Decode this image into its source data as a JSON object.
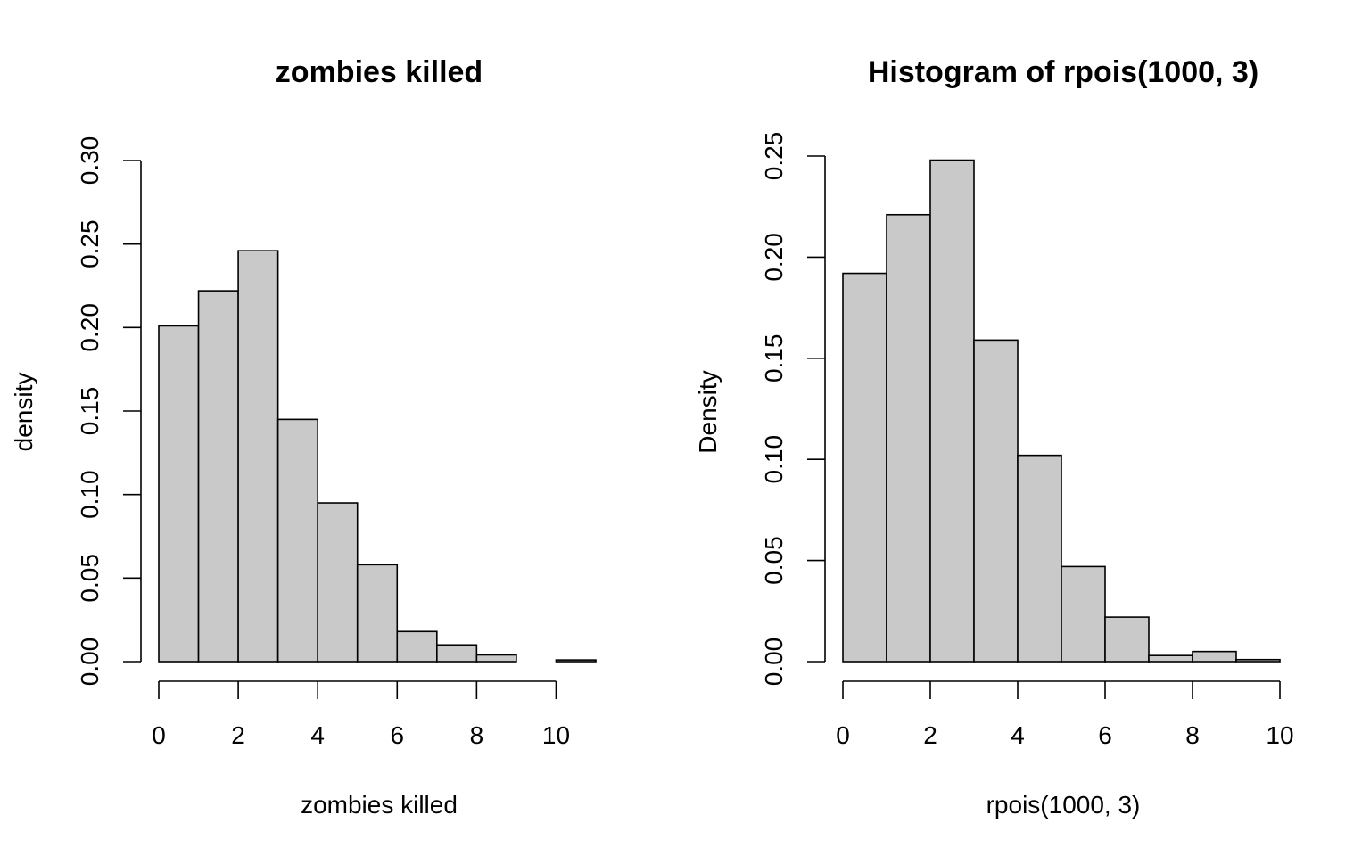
{
  "chart_data": [
    {
      "type": "bar",
      "title": "zombies killed",
      "xlabel": "zombies killed",
      "ylabel": "density",
      "bin_edges": [
        0,
        1,
        2,
        3,
        4,
        5,
        6,
        7,
        8,
        9,
        10,
        11
      ],
      "values": [
        0.201,
        0.222,
        0.246,
        0.145,
        0.095,
        0.058,
        0.018,
        0.01,
        0.004,
        0.0,
        0.001
      ],
      "xlim": [
        0,
        11
      ],
      "ylim": [
        0,
        0.3
      ],
      "x_ticks": [
        0,
        2,
        4,
        6,
        8,
        10
      ],
      "x_tick_labels": [
        "0",
        "2",
        "4",
        "6",
        "8",
        "10"
      ],
      "y_ticks": [
        0,
        0.05,
        0.1,
        0.15,
        0.2,
        0.25,
        0.3
      ],
      "y_tick_labels": [
        "0.00",
        "0.05",
        "0.10",
        "0.15",
        "0.20",
        "0.25",
        "0.30"
      ],
      "grid": false,
      "bar_color": "#c9c9c9"
    },
    {
      "type": "bar",
      "title": "Histogram of rpois(1000, 3)",
      "xlabel": "rpois(1000, 3)",
      "ylabel": "Density",
      "bin_edges": [
        0,
        1,
        2,
        3,
        4,
        5,
        6,
        7,
        8,
        9,
        10
      ],
      "values": [
        0.192,
        0.221,
        0.248,
        0.159,
        0.102,
        0.047,
        0.022,
        0.003,
        0.005,
        0.001
      ],
      "xlim": [
        0,
        10
      ],
      "ylim": [
        0,
        0.25
      ],
      "x_ticks": [
        0,
        2,
        4,
        6,
        8,
        10
      ],
      "x_tick_labels": [
        "0",
        "2",
        "4",
        "6",
        "8",
        "10"
      ],
      "y_ticks": [
        0,
        0.05,
        0.1,
        0.15,
        0.2,
        0.25
      ],
      "y_tick_labels": [
        "0.00",
        "0.05",
        "0.10",
        "0.15",
        "0.20",
        "0.25"
      ],
      "grid": false,
      "bar_color": "#c9c9c9"
    }
  ]
}
